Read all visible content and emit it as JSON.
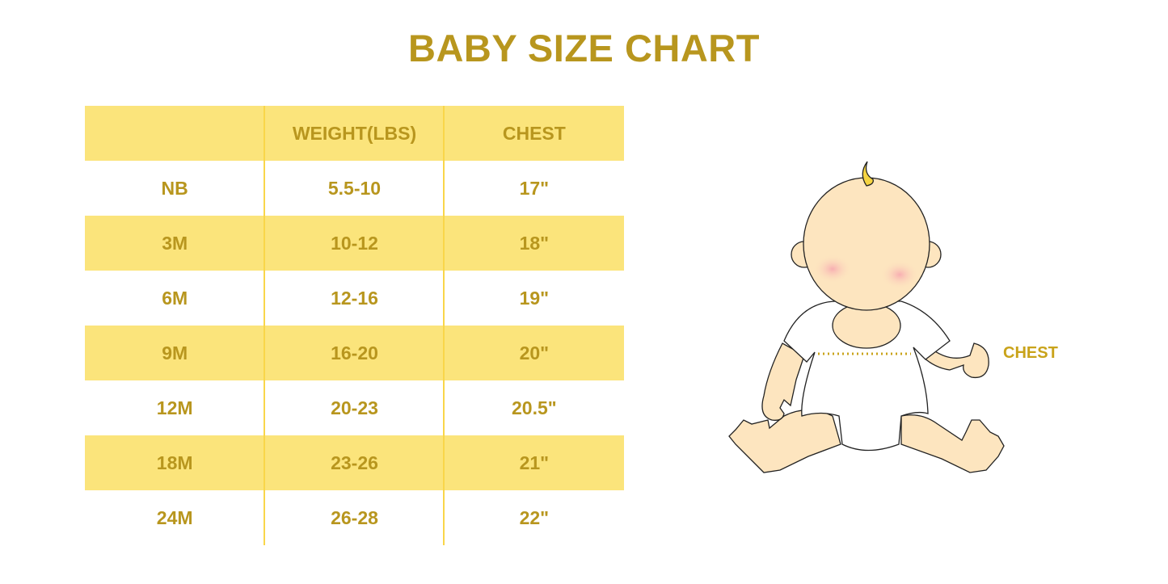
{
  "title": "BABY SIZE CHART",
  "table": {
    "headers": [
      "",
      "WEIGHT(LBS)",
      "CHEST"
    ],
    "rows": [
      [
        "NB",
        "5.5-10",
        "17\""
      ],
      [
        "3M",
        "10-12",
        "18\""
      ],
      [
        "6M",
        "12-16",
        "19\""
      ],
      [
        "9M",
        "16-20",
        "20\""
      ],
      [
        "12M",
        "20-23",
        "20.5\""
      ],
      [
        "18M",
        "23-26",
        "21\""
      ],
      [
        "24M",
        "26-28",
        "22\""
      ]
    ]
  },
  "illustration": {
    "chest_label": "CHEST"
  },
  "colors": {
    "text": "#b8961e",
    "band": "#fbe47b",
    "skin": "#fde5bf",
    "hair": "#f5d442"
  }
}
